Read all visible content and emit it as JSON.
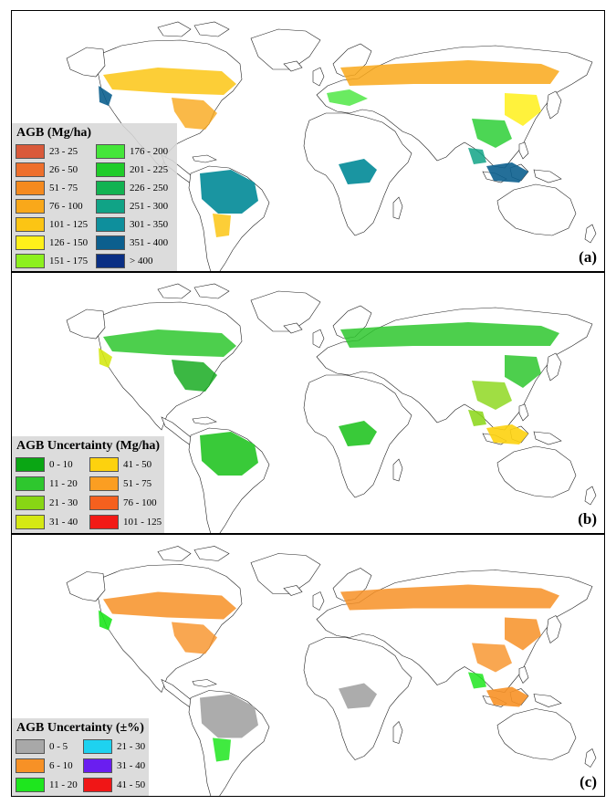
{
  "panels": [
    {
      "id": "a",
      "label": "(a)",
      "legend_title": "AGB (Mg/ha)",
      "legend": [
        {
          "label": "23 - 25",
          "color": "#d9593a"
        },
        {
          "label": "26 - 50",
          "color": "#ee6f2c"
        },
        {
          "label": "51 - 75",
          "color": "#f58a1e"
        },
        {
          "label": "76 - 100",
          "color": "#f9a81a"
        },
        {
          "label": "101 - 125",
          "color": "#fcc514"
        },
        {
          "label": "126 - 150",
          "color": "#fff01a"
        },
        {
          "label": "151 - 175",
          "color": "#8df01e"
        },
        {
          "label": "176 - 200",
          "color": "#45e63a"
        },
        {
          "label": "201 - 225",
          "color": "#1fcc29"
        },
        {
          "label": "226 - 250",
          "color": "#12b352"
        },
        {
          "label": "251 - 300",
          "color": "#10a386"
        },
        {
          "label": "301 - 350",
          "color": "#0e8f9c"
        },
        {
          "label": "351 - 400",
          "color": "#0c5f8e"
        },
        {
          "label": "> 400",
          "color": "#0a2f84"
        }
      ]
    },
    {
      "id": "b",
      "label": "(b)",
      "legend_title": "AGB Uncertainty (Mg/ha)",
      "legend": [
        {
          "label": "0 - 10",
          "color": "#0aa614"
        },
        {
          "label": "11 - 20",
          "color": "#2ec72e"
        },
        {
          "label": "21 - 30",
          "color": "#88d614"
        },
        {
          "label": "31 - 40",
          "color": "#d5e814"
        },
        {
          "label": "41 - 50",
          "color": "#fdd20e"
        },
        {
          "label": "51 - 75",
          "color": "#fb9e22"
        },
        {
          "label": "76 - 100",
          "color": "#f5601e"
        },
        {
          "label": "101 - 125",
          "color": "#f21a16"
        }
      ]
    },
    {
      "id": "c",
      "label": "(c)",
      "legend_title": "AGB Uncertainty (±%)",
      "legend": [
        {
          "label": "0 - 5",
          "color": "#a8a8a8"
        },
        {
          "label": "6 - 10",
          "color": "#f79126"
        },
        {
          "label": "11 - 20",
          "color": "#1ee61e"
        },
        {
          "label": "21 - 30",
          "color": "#1ed2f0"
        },
        {
          "label": "31 - 40",
          "color": "#6a1ef0"
        },
        {
          "label": "41 - 50",
          "color": "#f01616"
        }
      ]
    }
  ]
}
